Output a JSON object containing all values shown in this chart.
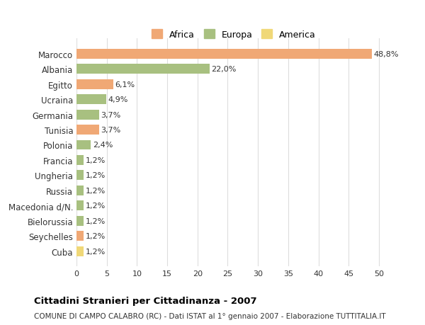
{
  "countries": [
    "Marocco",
    "Albania",
    "Egitto",
    "Ucraina",
    "Germania",
    "Tunisia",
    "Polonia",
    "Francia",
    "Ungheria",
    "Russia",
    "Macedonia d/N.",
    "Bielorussia",
    "Seychelles",
    "Cuba"
  ],
  "values": [
    48.8,
    22.0,
    6.1,
    4.9,
    3.7,
    3.7,
    2.4,
    1.2,
    1.2,
    1.2,
    1.2,
    1.2,
    1.2,
    1.2
  ],
  "labels": [
    "48,8%",
    "22,0%",
    "6,1%",
    "4,9%",
    "3,7%",
    "3,7%",
    "2,4%",
    "1,2%",
    "1,2%",
    "1,2%",
    "1,2%",
    "1,2%",
    "1,2%",
    "1,2%"
  ],
  "continents": [
    "Africa",
    "Europa",
    "Africa",
    "Europa",
    "Europa",
    "Africa",
    "Europa",
    "Europa",
    "Europa",
    "Europa",
    "Europa",
    "Europa",
    "Africa",
    "America"
  ],
  "colors": {
    "Africa": "#F0A875",
    "Europa": "#A8C080",
    "America": "#F0D878"
  },
  "legend": [
    "Africa",
    "Europa",
    "America"
  ],
  "title": "Cittadini Stranieri per Cittadinanza - 2007",
  "subtitle": "COMUNE DI CAMPO CALABRO (RC) - Dati ISTAT al 1° gennaio 2007 - Elaborazione TUTTITALIA.IT",
  "xlim": [
    0,
    52
  ],
  "xticks": [
    0,
    5,
    10,
    15,
    20,
    25,
    30,
    35,
    40,
    45,
    50
  ],
  "bg_color": "#ffffff",
  "grid_color": "#dddddd"
}
